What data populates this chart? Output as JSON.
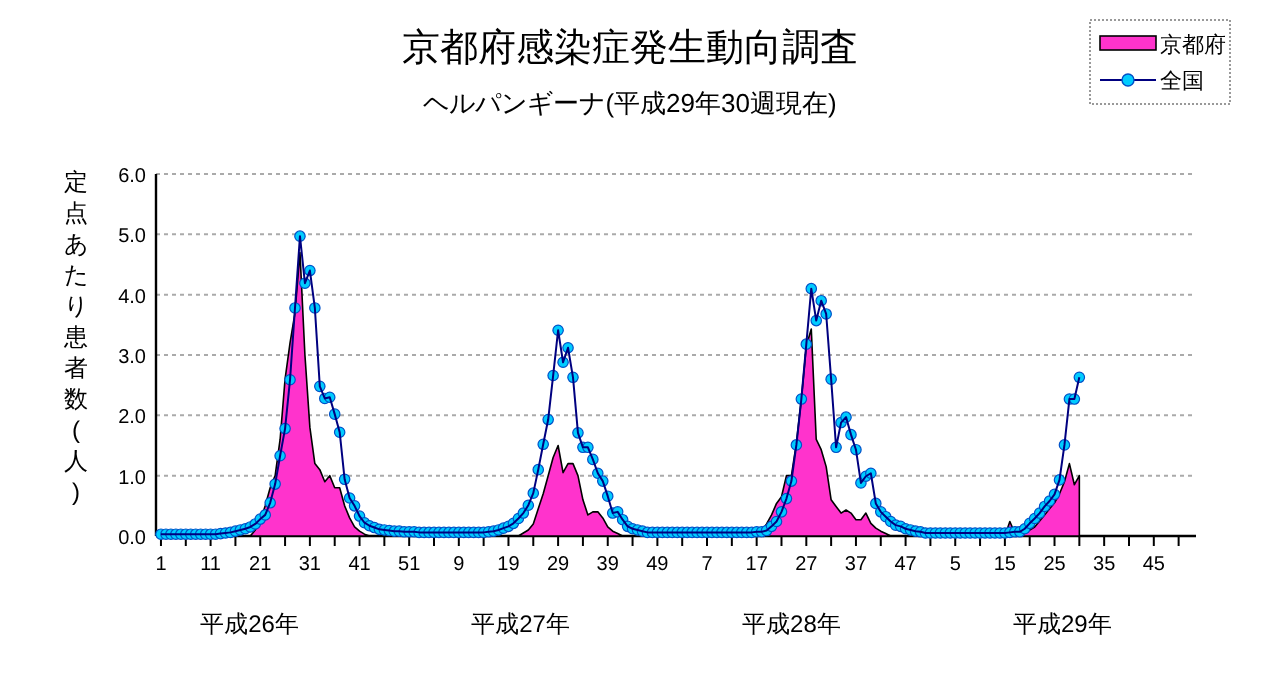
{
  "chart_data": {
    "type": "line",
    "title": "京都府感染症発生動向調査",
    "subtitle": "ヘルパンギーナ(平成29年30週現在)",
    "ylabel": "定点あたり患者数(人)",
    "annotations": [
      "平成26年",
      "平成27年",
      "平成28年",
      "平成29年"
    ],
    "categories": [
      "1",
      null,
      null,
      null,
      null,
      null,
      null,
      null,
      null,
      null,
      "11",
      null,
      null,
      null,
      null,
      null,
      null,
      null,
      null,
      null,
      "21",
      null,
      null,
      null,
      null,
      null,
      null,
      null,
      null,
      null,
      "31",
      null,
      null,
      null,
      null,
      null,
      null,
      null,
      null,
      null,
      "41",
      null,
      null,
      null,
      null,
      null,
      null,
      null,
      null,
      null,
      "51",
      null,
      null,
      null,
      null,
      null,
      null,
      null,
      null,
      null,
      "9",
      null,
      null,
      null,
      null,
      null,
      null,
      null,
      null,
      null,
      "19",
      null,
      null,
      null,
      null,
      null,
      null,
      null,
      null,
      null,
      "29",
      null,
      null,
      null,
      null,
      null,
      null,
      null,
      null,
      null,
      "39",
      null,
      null,
      null,
      null,
      null,
      null,
      null,
      null,
      null,
      "49",
      null,
      null,
      null,
      null,
      null,
      null,
      null,
      null,
      null,
      "7",
      null,
      null,
      null,
      null,
      null,
      null,
      null,
      null,
      null,
      "17",
      null,
      null,
      null,
      null,
      null,
      null,
      null,
      null,
      null,
      "27",
      null,
      null,
      null,
      null,
      null,
      null,
      null,
      null,
      null,
      "37",
      null,
      null,
      null,
      null,
      null,
      null,
      null,
      null,
      null,
      "47",
      null,
      null,
      null,
      null,
      null,
      null,
      null,
      null,
      null,
      "5",
      null,
      null,
      null,
      null,
      null,
      null,
      null,
      null,
      null,
      "15",
      null,
      null,
      null,
      null,
      null,
      null,
      null,
      null,
      null,
      "25",
      null,
      null,
      null,
      null,
      null,
      null,
      null,
      null,
      null,
      "35",
      null,
      null,
      null,
      null,
      null,
      null,
      null,
      null,
      null,
      "45",
      null,
      null,
      null,
      null,
      null,
      null,
      null
    ],
    "ylim": [
      0,
      6
    ],
    "yticks": [
      {
        "value": 0,
        "label": "0.0"
      },
      {
        "value": 1,
        "label": "1.0"
      },
      {
        "value": 2,
        "label": "2.0"
      },
      {
        "value": 3,
        "label": "3.0"
      },
      {
        "value": 4,
        "label": "4.0"
      },
      {
        "value": 5,
        "label": "5.0"
      },
      {
        "value": 6,
        "label": "6.0"
      }
    ],
    "grid": "y",
    "legend": "top right",
    "series": [
      {
        "name": "京都府",
        "type": "area",
        "color": "#ff33cc",
        "values": [
          0,
          0,
          0,
          0,
          0,
          0,
          0,
          0,
          0,
          0,
          0,
          0,
          0,
          0,
          0,
          0,
          0,
          0,
          0,
          0.1,
          0.25,
          0.5,
          0.8,
          1.0,
          1.6,
          2.6,
          3.2,
          3.7,
          4.7,
          3.0,
          1.8,
          1.2,
          1.1,
          0.9,
          1.0,
          0.8,
          0.8,
          0.5,
          0.3,
          0.15,
          0.08,
          0.03,
          0,
          0,
          0,
          0,
          0,
          0,
          0,
          0,
          0,
          0,
          0,
          0,
          0,
          0,
          0,
          0,
          0,
          0,
          0,
          0,
          0,
          0,
          0,
          0,
          0,
          0,
          0,
          0,
          0,
          0,
          0,
          0.05,
          0.1,
          0.2,
          0.45,
          0.7,
          1.0,
          1.3,
          1.5,
          1.05,
          1.2,
          1.2,
          1.0,
          0.6,
          0.35,
          0.4,
          0.4,
          0.3,
          0.15,
          0.08,
          0.04,
          0,
          0,
          0,
          0,
          0,
          0,
          0,
          0,
          0,
          0,
          0,
          0,
          0,
          0,
          0,
          0,
          0,
          0,
          0,
          0,
          0,
          0,
          0,
          0,
          0,
          0,
          0,
          0,
          0.08,
          0.2,
          0.35,
          0.54,
          0.65,
          1.0,
          1.0,
          1.54,
          2.27,
          3.15,
          3.43,
          1.6,
          1.43,
          1.15,
          0.6,
          0.49,
          0.38,
          0.43,
          0.38,
          0.27,
          0.27,
          0.38,
          0.21,
          0.13,
          0.08,
          0.04,
          0,
          0,
          0,
          0,
          0,
          0,
          0,
          0,
          0,
          0,
          0,
          0,
          0,
          0,
          0,
          0,
          0,
          0,
          0,
          0,
          0,
          0,
          0,
          0,
          0.24,
          0.05,
          0.05,
          0.08,
          0.1,
          0.15,
          0.25,
          0.35,
          0.45,
          0.55,
          0.7,
          0.9,
          1.2,
          0.85,
          1.0,
          null,
          null,
          null,
          null,
          null,
          null,
          null,
          null,
          null,
          null,
          null,
          null,
          null,
          null,
          null,
          null,
          null,
          null,
          null,
          null,
          null,
          null
        ]
      },
      {
        "name": "全国",
        "type": "line",
        "marker": "circle",
        "color": "#00ccff",
        "values": [
          0.03,
          0.03,
          0.03,
          0.03,
          0.03,
          0.03,
          0.03,
          0.03,
          0.03,
          0.03,
          0.03,
          0.03,
          0.04,
          0.05,
          0.06,
          0.08,
          0.1,
          0.12,
          0.15,
          0.2,
          0.28,
          0.35,
          0.55,
          0.86,
          1.33,
          1.78,
          2.59,
          3.78,
          4.97,
          4.19,
          4.4,
          3.78,
          2.48,
          2.28,
          2.3,
          2.02,
          1.72,
          0.94,
          0.63,
          0.5,
          0.33,
          0.22,
          0.17,
          0.14,
          0.11,
          0.1,
          0.09,
          0.08,
          0.08,
          0.07,
          0.07,
          0.07,
          0.06,
          0.06,
          0.06,
          0.06,
          0.06,
          0.06,
          0.06,
          0.06,
          0.06,
          0.06,
          0.06,
          0.06,
          0.06,
          0.06,
          0.07,
          0.08,
          0.1,
          0.13,
          0.16,
          0.21,
          0.29,
          0.38,
          0.51,
          0.71,
          1.1,
          1.52,
          1.93,
          2.66,
          3.41,
          2.88,
          3.12,
          2.63,
          1.71,
          1.47,
          1.47,
          1.27,
          1.04,
          0.91,
          0.66,
          0.38,
          0.4,
          0.27,
          0.16,
          0.12,
          0.1,
          0.08,
          0.06,
          0.06,
          0.06,
          0.06,
          0.06,
          0.06,
          0.06,
          0.06,
          0.06,
          0.06,
          0.06,
          0.06,
          0.06,
          0.06,
          0.06,
          0.06,
          0.06,
          0.06,
          0.06,
          0.06,
          0.06,
          0.06,
          0.07,
          0.07,
          0.09,
          0.16,
          0.24,
          0.4,
          0.62,
          0.91,
          1.51,
          2.27,
          3.18,
          4.1,
          3.57,
          3.9,
          3.68,
          2.6,
          1.47,
          1.88,
          1.97,
          1.68,
          1.43,
          0.88,
          0.99,
          1.04,
          0.54,
          0.4,
          0.32,
          0.24,
          0.18,
          0.16,
          0.12,
          0.1,
          0.08,
          0.07,
          0.05,
          0.05,
          0.05,
          0.05,
          0.05,
          0.05,
          0.05,
          0.05,
          0.05,
          0.05,
          0.05,
          0.05,
          0.05,
          0.05,
          0.05,
          0.05,
          0.05,
          0.06,
          0.07,
          0.07,
          0.12,
          0.21,
          0.29,
          0.38,
          0.49,
          0.58,
          0.69,
          0.93,
          1.51,
          2.27,
          2.27,
          2.63,
          null,
          null,
          null,
          null,
          null,
          null,
          null,
          null,
          null,
          null,
          null,
          null,
          null,
          null,
          null,
          null,
          null,
          null,
          null,
          null,
          null,
          null
        ]
      }
    ]
  }
}
